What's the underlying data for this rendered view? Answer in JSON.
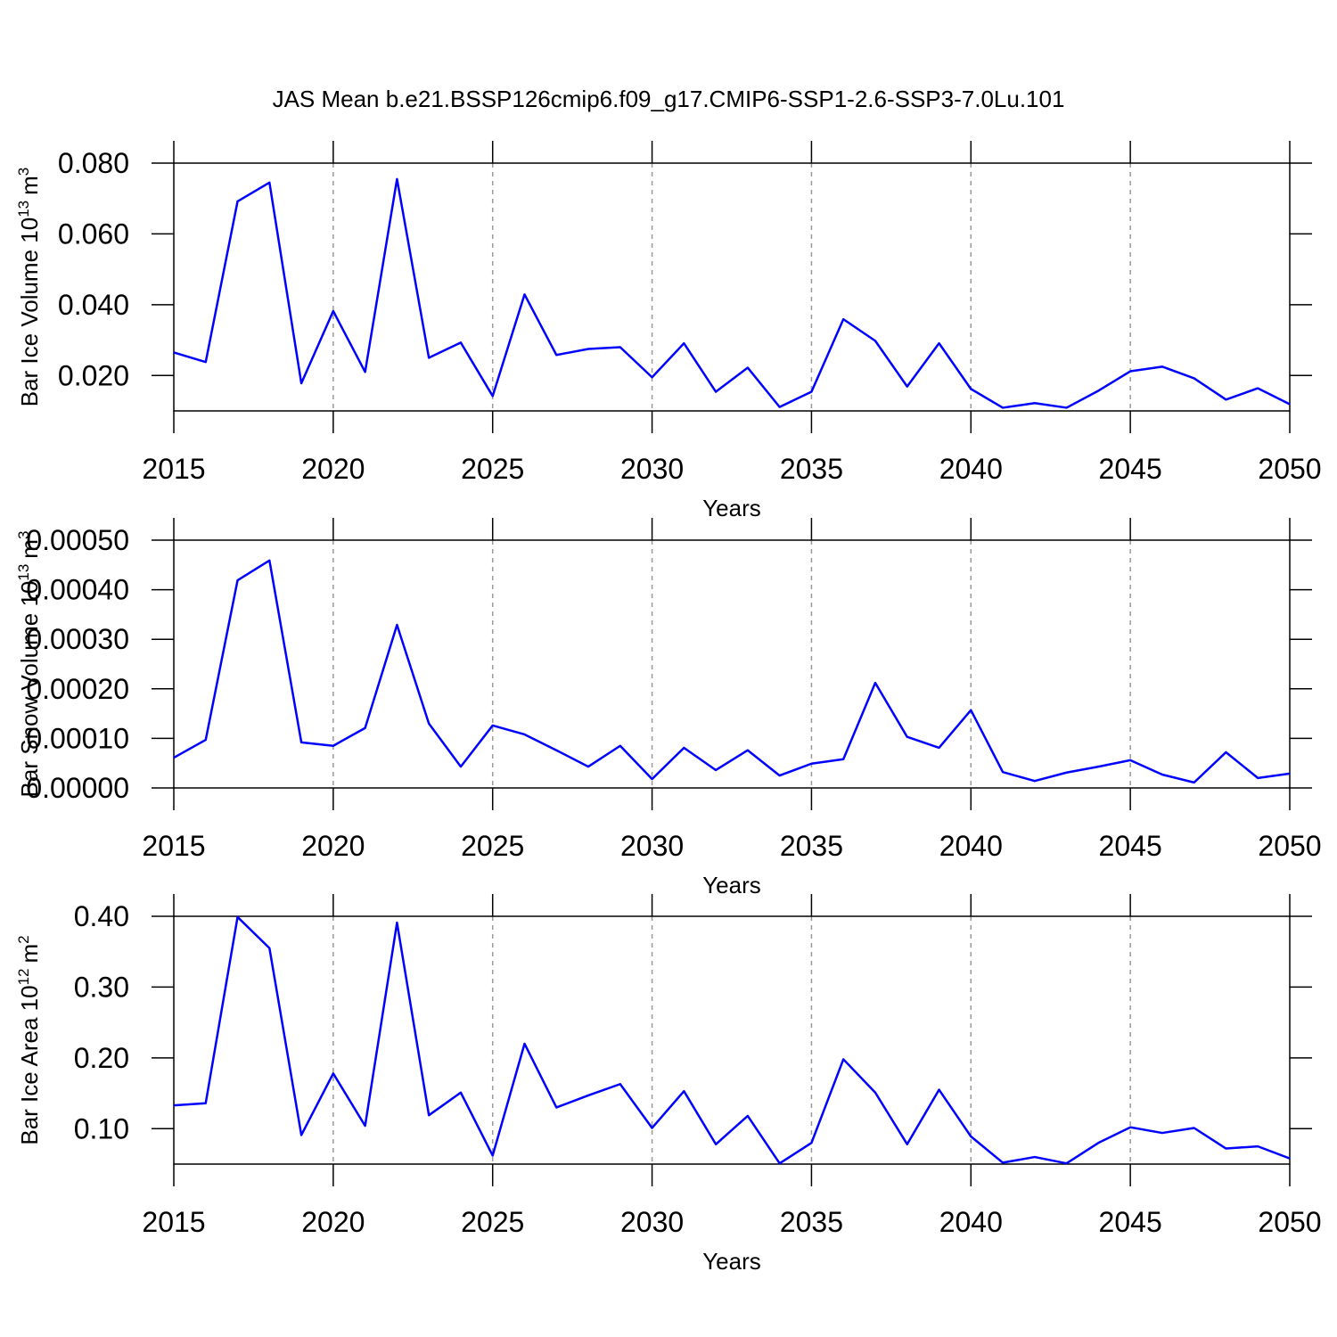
{
  "chart_data": [
    {
      "type": "line",
      "title": "JAS Mean b.e21.BSSP126cmip6.f09_g17.CMIP6-SSP1-2.6-SSP3-7.0Lu.101",
      "xlabel": "Years",
      "ylabel": [
        "Bar Ice Volume 10",
        "13",
        "m",
        "3"
      ],
      "x": [
        2015,
        2016,
        2017,
        2018,
        2019,
        2020,
        2021,
        2022,
        2023,
        2024,
        2025,
        2026,
        2027,
        2028,
        2029,
        2030,
        2031,
        2032,
        2033,
        2034,
        2035,
        2036,
        2037,
        2038,
        2039,
        2040,
        2041,
        2042,
        2043,
        2044,
        2045,
        2046,
        2047,
        2048,
        2049,
        2050
      ],
      "xlim": [
        2015,
        2050
      ],
      "xticks": [
        2015,
        2020,
        2025,
        2030,
        2035,
        2040,
        2045,
        2050
      ],
      "ylim": [
        0.01,
        0.08
      ],
      "yticks": [
        {
          "value": 0.02,
          "label": "0.020"
        },
        {
          "value": 0.04,
          "label": "0.040"
        },
        {
          "value": 0.06,
          "label": "0.060"
        },
        {
          "value": 0.08,
          "label": "0.080"
        }
      ],
      "grid": true,
      "series": [
        {
          "color": "#0000ff",
          "values": [
            0.0265,
            0.0238,
            0.0692,
            0.0745,
            0.0178,
            0.0382,
            0.021,
            0.0755,
            0.025,
            0.0293,
            0.0142,
            0.0429,
            0.0258,
            0.0275,
            0.028,
            0.0195,
            0.0291,
            0.0154,
            0.0222,
            0.0111,
            0.0154,
            0.0359,
            0.0298,
            0.0169,
            0.0291,
            0.0162,
            0.0109,
            0.0122,
            0.0109,
            0.0157,
            0.0212,
            0.0225,
            0.0192,
            0.0132,
            0.0164,
            0.0119
          ]
        }
      ]
    },
    {
      "type": "line",
      "xlabel": "Years",
      "ylabel": [
        "Bar Snow Volume 10",
        "13",
        "m",
        "3"
      ],
      "x": [
        2015,
        2016,
        2017,
        2018,
        2019,
        2020,
        2021,
        2022,
        2023,
        2024,
        2025,
        2026,
        2027,
        2028,
        2029,
        2030,
        2031,
        2032,
        2033,
        2034,
        2035,
        2036,
        2037,
        2038,
        2039,
        2040,
        2041,
        2042,
        2043,
        2044,
        2045,
        2046,
        2047,
        2048,
        2049,
        2050
      ],
      "xlim": [
        2015,
        2050
      ],
      "xticks": [
        2015,
        2020,
        2025,
        2030,
        2035,
        2040,
        2045,
        2050
      ],
      "ylim": [
        0,
        0.0005
      ],
      "yticks": [
        {
          "value": 0,
          "label": "0.00000"
        },
        {
          "value": 0.0001,
          "label": "0.00010"
        },
        {
          "value": 0.0002,
          "label": "0.00020"
        },
        {
          "value": 0.0003,
          "label": "0.00030"
        },
        {
          "value": 0.0004,
          "label": "0.00040"
        },
        {
          "value": 0.0005,
          "label": "0.00050"
        }
      ],
      "grid": true,
      "series": [
        {
          "color": "#0000ff",
          "values": [
            6.1e-05,
            9.7e-05,
            0.000419,
            0.000459,
            9.2e-05,
            8.5e-05,
            0.000121,
            0.000329,
            0.00013,
            4.3e-05,
            0.000126,
            0.000108,
            7.6e-05,
            4.3e-05,
            8.5e-05,
            1.8e-05,
            8.1e-05,
            3.6e-05,
            7.6e-05,
            2.5e-05,
            4.9e-05,
            5.8e-05,
            0.000212,
            0.000103,
            8.1e-05,
            0.000157,
            3.2e-05,
            1.4e-05,
            3.1e-05,
            4.3e-05,
            5.6e-05,
            2.7e-05,
            1.1e-05,
            7.2e-05,
            2e-05,
            2.9e-05
          ]
        }
      ]
    },
    {
      "type": "line",
      "xlabel": "Years",
      "ylabel": [
        "Bar Ice Area 10",
        "12",
        "m",
        "2"
      ],
      "x": [
        2015,
        2016,
        2017,
        2018,
        2019,
        2020,
        2021,
        2022,
        2023,
        2024,
        2025,
        2026,
        2027,
        2028,
        2029,
        2030,
        2031,
        2032,
        2033,
        2034,
        2035,
        2036,
        2037,
        2038,
        2039,
        2040,
        2041,
        2042,
        2043,
        2044,
        2045,
        2046,
        2047,
        2048,
        2049,
        2050
      ],
      "xlim": [
        2015,
        2050
      ],
      "xticks": [
        2015,
        2020,
        2025,
        2030,
        2035,
        2040,
        2045,
        2050
      ],
      "ylim": [
        0.05,
        0.4
      ],
      "yticks": [
        {
          "value": 0.1,
          "label": "0.10"
        },
        {
          "value": 0.2,
          "label": "0.20"
        },
        {
          "value": 0.3,
          "label": "0.30"
        },
        {
          "value": 0.4,
          "label": "0.40"
        }
      ],
      "grid": true,
      "series": [
        {
          "color": "#0000ff",
          "values": [
            0.133,
            0.136,
            0.399,
            0.355,
            0.091,
            0.178,
            0.104,
            0.391,
            0.119,
            0.151,
            0.062,
            0.22,
            0.13,
            0.147,
            0.163,
            0.101,
            0.153,
            0.078,
            0.118,
            0.051,
            0.08,
            0.198,
            0.151,
            0.078,
            0.155,
            0.089,
            0.052,
            0.06,
            0.051,
            0.08,
            0.102,
            0.094,
            0.101,
            0.072,
            0.075,
            0.058
          ]
        }
      ]
    }
  ]
}
